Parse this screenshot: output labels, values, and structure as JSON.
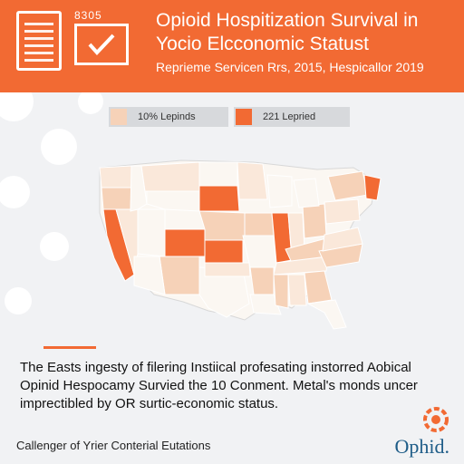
{
  "header": {
    "doc_number": "8305",
    "title": "Opioid Hospitization Survival in Yocio Elcconomic Statust",
    "subtitle": "Reprieme Servicen Rrs, 2015, Hespicallor 2019"
  },
  "legend": [
    {
      "label": "10% Lepinds",
      "color": "#f6d2b8"
    },
    {
      "label": "221 Lepried",
      "color": "#f26a33"
    }
  ],
  "body_text": "The Easts ingesty of filering Instiical profesating instorred Aobical Opinid Hespocamy Survied the 10 Conment. Metal's monds uncer imprectibled by OR surtic-economic status.",
  "footer_text": "Callenger of Yrier Conterial Eutations",
  "logo_text": "Ophid.",
  "colors": {
    "accent": "#f26a33",
    "light": "#f6d2b8",
    "pale": "#fae8da",
    "brand": "#1f5d88"
  }
}
